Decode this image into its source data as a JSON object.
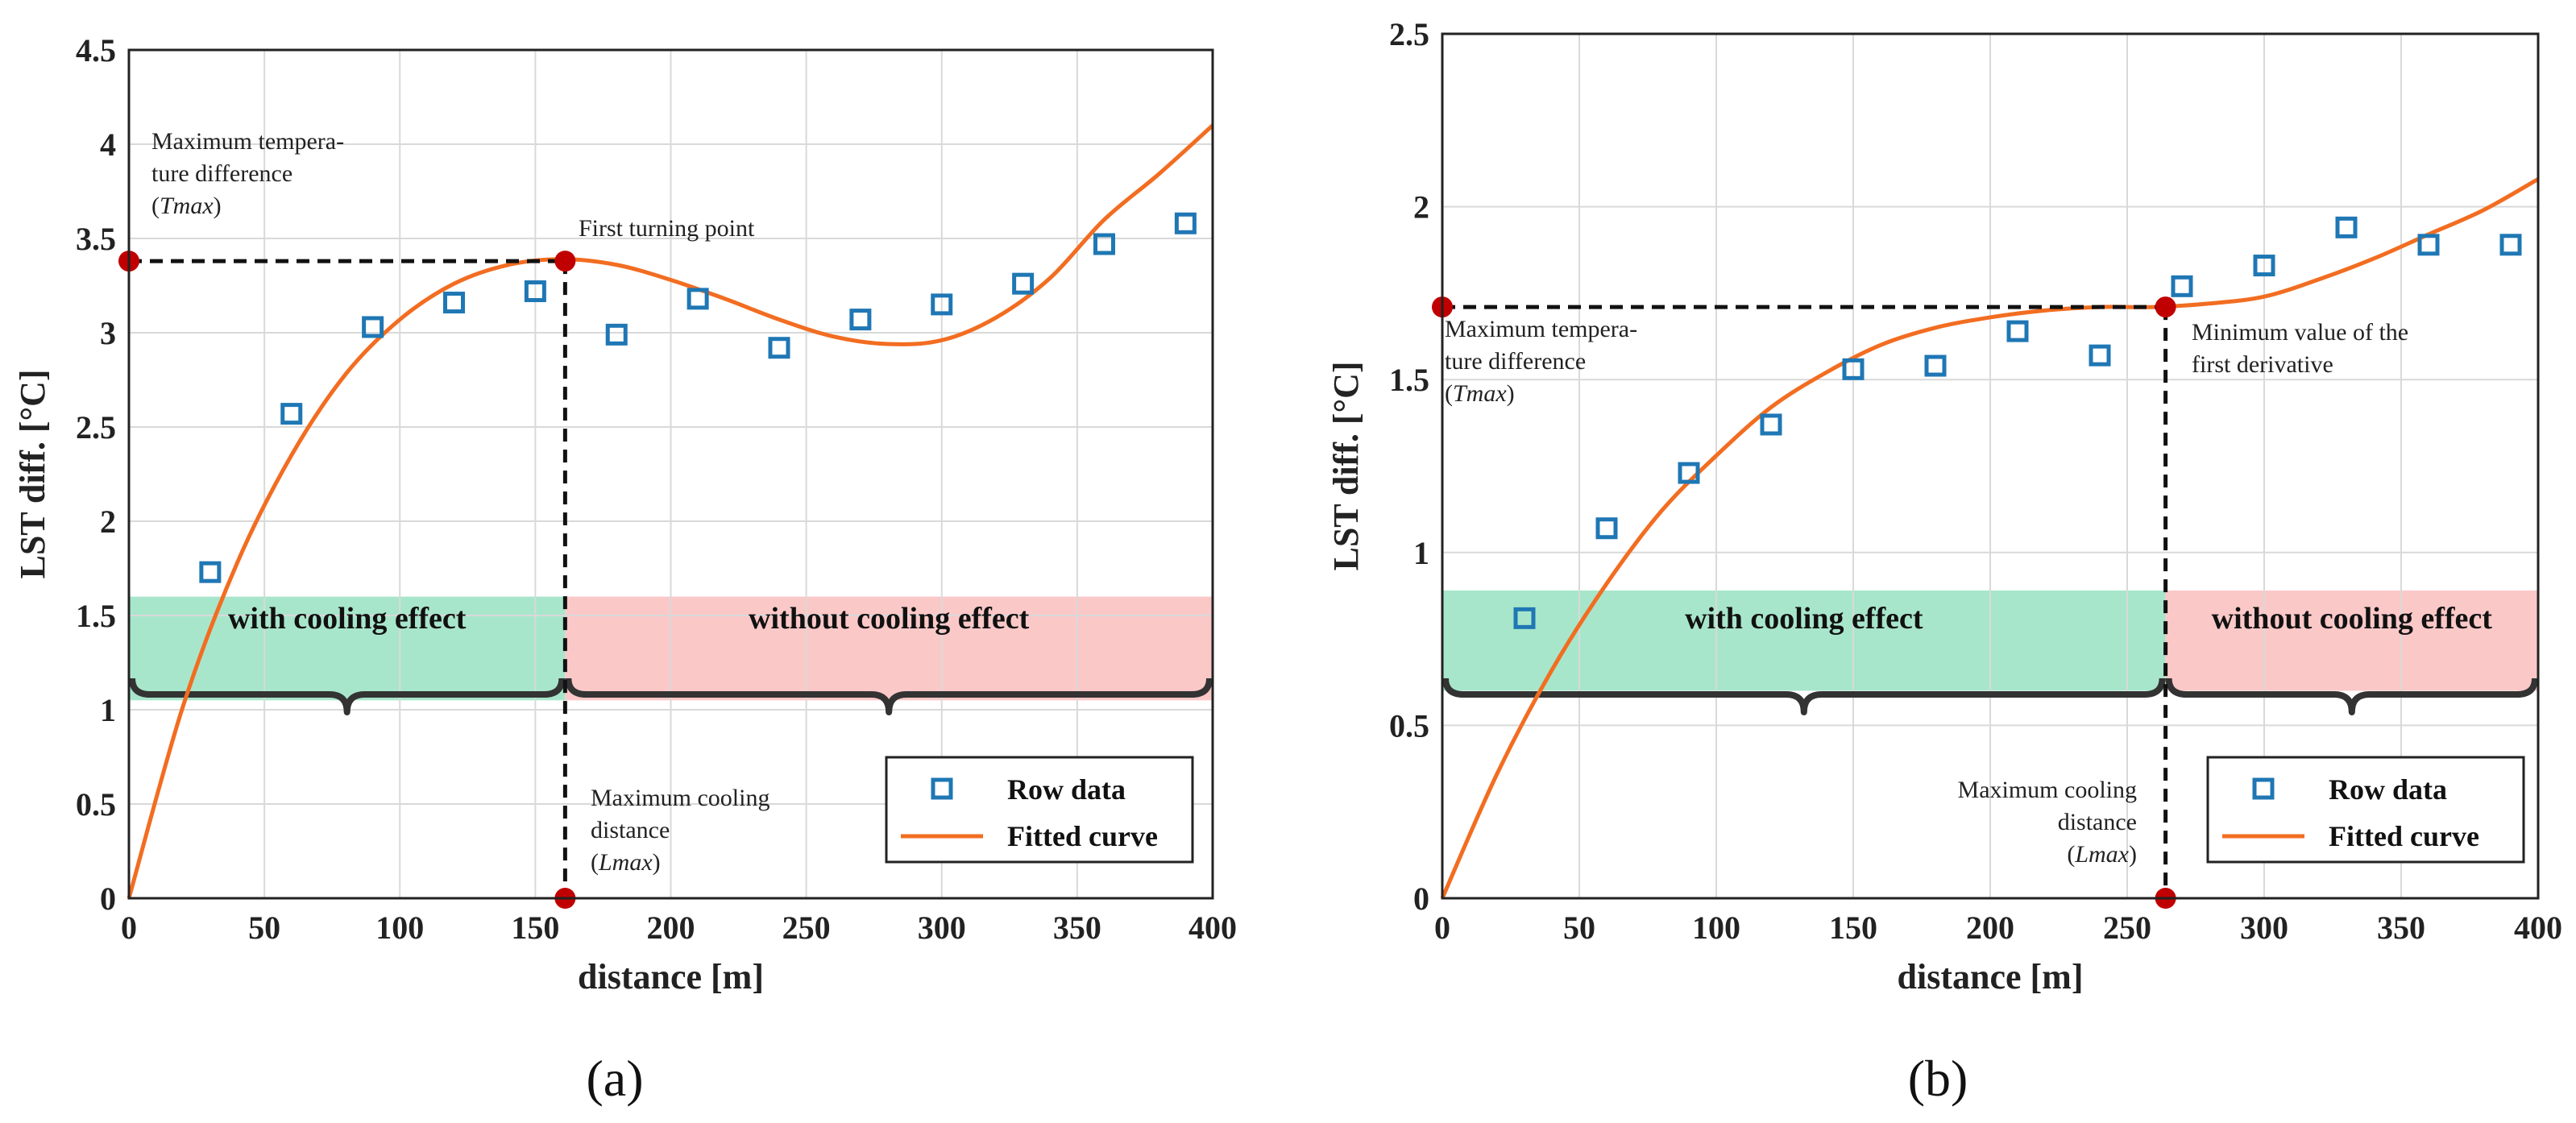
{
  "chart_data": [
    {
      "type": "scatter",
      "panel_label": "(a)",
      "xlabel": "distance [m]",
      "ylabel": "LST diff.  [°C]",
      "xlim": [
        0,
        400
      ],
      "ylim": [
        0,
        4.5
      ],
      "xticks": [
        "0",
        "50",
        "100",
        "150",
        "200",
        "250",
        "300",
        "350",
        "400"
      ],
      "yticks": [
        "0",
        "0.5",
        "1",
        "1.5",
        "2",
        "2.5",
        "3",
        "3.5",
        "4",
        "4.5"
      ],
      "grid": true,
      "legend_position": "bottom-right",
      "series": [
        {
          "name": "Row data",
          "kind": "markers",
          "x": [
            30,
            60,
            90,
            120,
            150,
            180,
            210,
            240,
            270,
            300,
            330,
            360,
            390
          ],
          "y": [
            1.73,
            2.57,
            3.03,
            3.16,
            3.22,
            2.99,
            3.18,
            2.92,
            3.07,
            3.15,
            3.26,
            3.47,
            3.58
          ]
        },
        {
          "name": "Fitted curve",
          "kind": "line",
          "x": [
            0,
            20,
            40,
            60,
            80,
            100,
            120,
            140,
            160,
            180,
            200,
            220,
            240,
            260,
            280,
            300,
            320,
            340,
            360,
            380,
            400
          ],
          "y": [
            0,
            1.02,
            1.78,
            2.35,
            2.78,
            3.07,
            3.26,
            3.36,
            3.39,
            3.36,
            3.28,
            3.18,
            3.07,
            2.98,
            2.94,
            2.96,
            3.08,
            3.29,
            3.6,
            3.84,
            4.1
          ]
        }
      ],
      "key_points": [
        {
          "x": 0,
          "y": 3.38
        },
        {
          "x": 161,
          "y": 3.38
        },
        {
          "x": 161,
          "y": 0
        }
      ],
      "regions": [
        {
          "label": "with cooling effect",
          "x": [
            0,
            161
          ],
          "y": [
            1.05,
            1.6
          ],
          "color": "#a8e6cb"
        },
        {
          "label": "without cooling effect",
          "x": [
            161,
            400
          ],
          "y": [
            1.05,
            1.6
          ],
          "color": "#fbc8c8"
        }
      ],
      "annotations": {
        "tmax": [
          "Maximum tempera-",
          "ture difference",
          "(Tmax)"
        ],
        "turning": [
          "First turning point"
        ],
        "lmax": [
          "Maximum cooling",
          "distance",
          "(Lmax)"
        ]
      }
    },
    {
      "type": "scatter",
      "panel_label": "(b)",
      "xlabel": "distance [m]",
      "ylabel": "LST diff.  [°C]",
      "xlim": [
        0,
        400
      ],
      "ylim": [
        0,
        2.5
      ],
      "xticks": [
        "0",
        "50",
        "100",
        "150",
        "200",
        "250",
        "300",
        "350",
        "400"
      ],
      "yticks": [
        "0",
        "0.5",
        "1",
        "1.5",
        "2",
        "2.5"
      ],
      "grid": true,
      "legend_position": "bottom-right",
      "series": [
        {
          "name": "Row data",
          "kind": "markers",
          "x": [
            30,
            60,
            90,
            120,
            150,
            180,
            210,
            240,
            270,
            300,
            330,
            360,
            390
          ],
          "y": [
            0.81,
            1.07,
            1.23,
            1.37,
            1.53,
            1.54,
            1.64,
            1.57,
            1.77,
            1.83,
            1.94,
            1.89,
            1.89
          ]
        },
        {
          "name": "Fitted curve",
          "kind": "line",
          "x": [
            0,
            20,
            40,
            60,
            80,
            100,
            120,
            140,
            160,
            180,
            200,
            220,
            240,
            260,
            280,
            300,
            320,
            340,
            360,
            380,
            400
          ],
          "y": [
            0,
            0.36,
            0.66,
            0.91,
            1.12,
            1.28,
            1.42,
            1.52,
            1.6,
            1.65,
            1.68,
            1.7,
            1.71,
            1.71,
            1.72,
            1.74,
            1.79,
            1.85,
            1.92,
            1.99,
            2.08
          ]
        }
      ],
      "key_points": [
        {
          "x": 0,
          "y": 1.71
        },
        {
          "x": 264,
          "y": 1.71
        },
        {
          "x": 264,
          "y": 0
        }
      ],
      "regions": [
        {
          "label": "with cooling effect",
          "x": [
            0,
            264
          ],
          "y": [
            0.6,
            0.89
          ],
          "color": "#a8e6cb"
        },
        {
          "label": "without cooling effect",
          "x": [
            264,
            400
          ],
          "y": [
            0.6,
            0.89
          ],
          "color": "#fbc8c8"
        }
      ],
      "annotations": {
        "tmax": [
          "Maximum tempera-",
          "ture difference",
          "(Tmax)"
        ],
        "turning": [
          "Minimum value of the",
          "first derivative"
        ],
        "lmax": [
          "Maximum cooling",
          "distance",
          "(Lmax)"
        ]
      }
    }
  ],
  "colors": {
    "markers": "#1f77b4",
    "curve": "#f26d21",
    "key_point": "#c00000",
    "grid": "#d9d9d9",
    "brace": "#333333"
  }
}
